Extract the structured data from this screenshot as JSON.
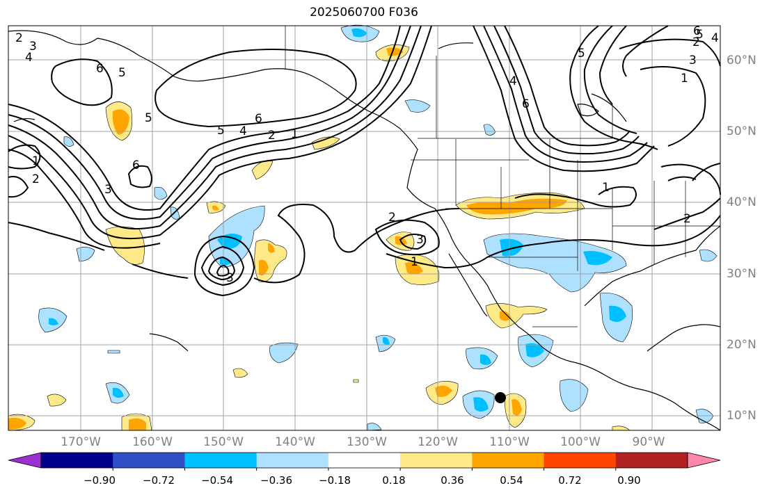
{
  "title": "2025060700 F036",
  "lon_labels": [
    "170°W",
    "160°W",
    "150°W",
    "140°W",
    "130°W",
    "120°W",
    "110°W",
    "100°W",
    "90°W"
  ],
  "lat_labels": [
    "60°N",
    "50°N",
    "40°N",
    "30°N",
    "20°N",
    "10°N"
  ],
  "colorbar": {
    "ticks": [
      "−0.90",
      "−0.72",
      "−0.54",
      "−0.36",
      "−0.18",
      "0.18",
      "0.36",
      "0.54",
      "0.72",
      "0.90"
    ],
    "colors": [
      "#9b30d0",
      "#00008b",
      "#3050c8",
      "#00bfff",
      "#aee0ff",
      "#ffffff",
      "#ffea8a",
      "#ffa500",
      "#ff4500",
      "#b22222",
      "#ff88aa"
    ]
  },
  "contour_labels": [
    "2",
    "3",
    "4",
    "5",
    "6",
    "6",
    "5",
    "4",
    "2",
    "1",
    "6",
    "5",
    "1",
    "2",
    "3",
    "3",
    "1",
    "2",
    "3",
    "6",
    "5",
    "4",
    "3",
    "2",
    "1",
    "2",
    "5",
    "4",
    "6",
    "1"
  ],
  "colors": {
    "grid": "#a0a0a0",
    "coast": "#000000",
    "contour": "#000000",
    "marker": "#000000"
  }
}
